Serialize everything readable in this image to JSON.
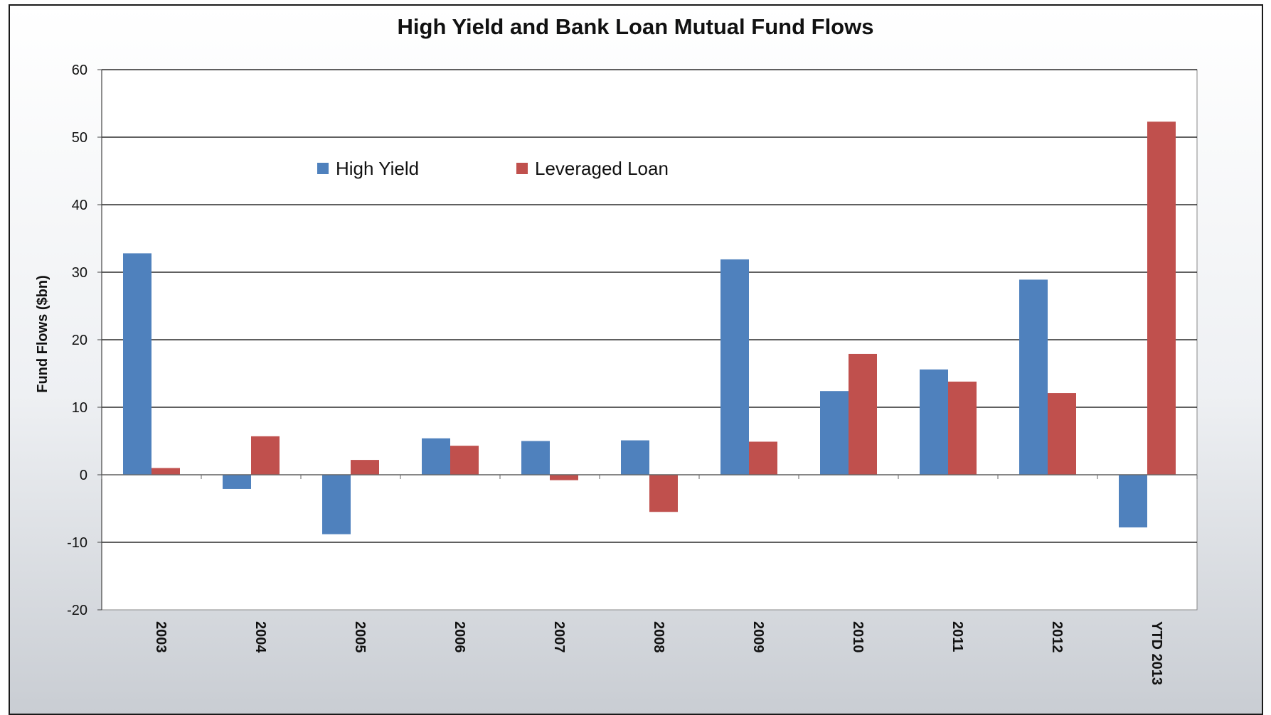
{
  "chart_data": {
    "type": "bar",
    "title": "High Yield and Bank Loan Mutual Fund Flows",
    "xlabel": "",
    "ylabel": "Fund Flows ($bn)",
    "ylim": [
      -20,
      60
    ],
    "yticks": [
      -20,
      -10,
      0,
      10,
      20,
      30,
      40,
      50,
      60
    ],
    "categories": [
      "2003",
      "2004",
      "2005",
      "2006",
      "2007",
      "2008",
      "2009",
      "2010",
      "2011",
      "2012",
      "YTD 2013"
    ],
    "series": [
      {
        "name": "High Yield",
        "color": "#4f81bd",
        "values": [
          32.8,
          -2.1,
          -8.8,
          5.4,
          5.0,
          5.1,
          31.9,
          12.4,
          15.6,
          28.9,
          -7.8
        ]
      },
      {
        "name": "Leveraged Loan",
        "color": "#c0504d",
        "values": [
          1.0,
          5.7,
          2.2,
          4.3,
          -0.8,
          -5.5,
          4.9,
          17.9,
          13.8,
          12.1,
          52.3
        ]
      }
    ],
    "grid": true,
    "legend": "top-center"
  }
}
